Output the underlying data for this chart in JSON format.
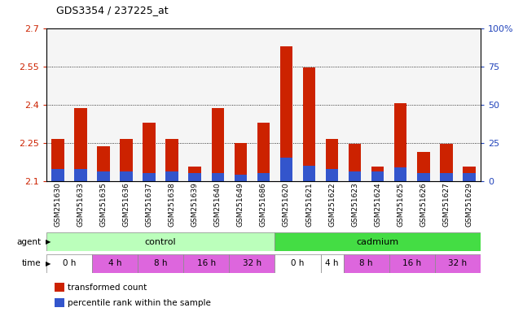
{
  "title": "GDS3354 / 237225_at",
  "samples": [
    "GSM251630",
    "GSM251633",
    "GSM251635",
    "GSM251636",
    "GSM251637",
    "GSM251638",
    "GSM251639",
    "GSM251640",
    "GSM251649",
    "GSM251686",
    "GSM251620",
    "GSM251621",
    "GSM251622",
    "GSM251623",
    "GSM251624",
    "GSM251625",
    "GSM251626",
    "GSM251627",
    "GSM251629"
  ],
  "red_values": [
    2.265,
    2.385,
    2.235,
    2.265,
    2.33,
    2.265,
    2.155,
    2.385,
    2.25,
    2.33,
    2.63,
    2.545,
    2.265,
    2.245,
    2.155,
    2.405,
    2.215,
    2.245,
    2.155
  ],
  "blue_pct": [
    8,
    8,
    6,
    6,
    5,
    6,
    5,
    5,
    4,
    5,
    15,
    10,
    8,
    6,
    6,
    9,
    5,
    5,
    5
  ],
  "ymin": 2.1,
  "ymax": 2.7,
  "yticks": [
    2.1,
    2.25,
    2.4,
    2.55,
    2.7
  ],
  "ytick_labels": [
    "2.1",
    "2.25",
    "2.4",
    "2.55",
    "2.7"
  ],
  "y2min": 0,
  "y2max": 100,
  "y2ticks": [
    0,
    25,
    50,
    75,
    100
  ],
  "y2tick_labels": [
    "0",
    "25",
    "50",
    "75",
    "100%"
  ],
  "grid_values": [
    2.25,
    2.4,
    2.55
  ],
  "bar_color": "#cc2200",
  "blue_color": "#3355cc",
  "bar_width": 0.55,
  "agent_groups": [
    {
      "label": "control",
      "start": 0,
      "end": 10,
      "color": "#bbffbb"
    },
    {
      "label": "cadmium",
      "start": 10,
      "end": 19,
      "color": "#44dd44"
    }
  ],
  "time_groups": [
    {
      "label": "0 h",
      "xstart": 0,
      "xend": 2,
      "color": "#ffffff"
    },
    {
      "label": "4 h",
      "xstart": 2,
      "xend": 4,
      "color": "#dd66dd"
    },
    {
      "label": "8 h",
      "xstart": 4,
      "xend": 6,
      "color": "#dd66dd"
    },
    {
      "label": "16 h",
      "xstart": 6,
      "xend": 8,
      "color": "#dd66dd"
    },
    {
      "label": "32 h",
      "xstart": 8,
      "xend": 10,
      "color": "#dd66dd"
    },
    {
      "label": "0 h",
      "xstart": 10,
      "xend": 12,
      "color": "#ffffff"
    },
    {
      "label": "4 h",
      "xstart": 12,
      "xend": 13,
      "color": "#ffffff"
    },
    {
      "label": "8 h",
      "xstart": 13,
      "xend": 15,
      "color": "#dd66dd"
    },
    {
      "label": "16 h",
      "xstart": 15,
      "xend": 17,
      "color": "#dd66dd"
    },
    {
      "label": "32 h",
      "xstart": 17,
      "xend": 19,
      "color": "#dd66dd"
    }
  ],
  "legend_items": [
    {
      "color": "#cc2200",
      "label": "transformed count"
    },
    {
      "color": "#3355cc",
      "label": "percentile rank within the sample"
    }
  ],
  "left_label_color": "#cc2200",
  "right_label_color": "#2244bb",
  "background_color": "#ffffff"
}
